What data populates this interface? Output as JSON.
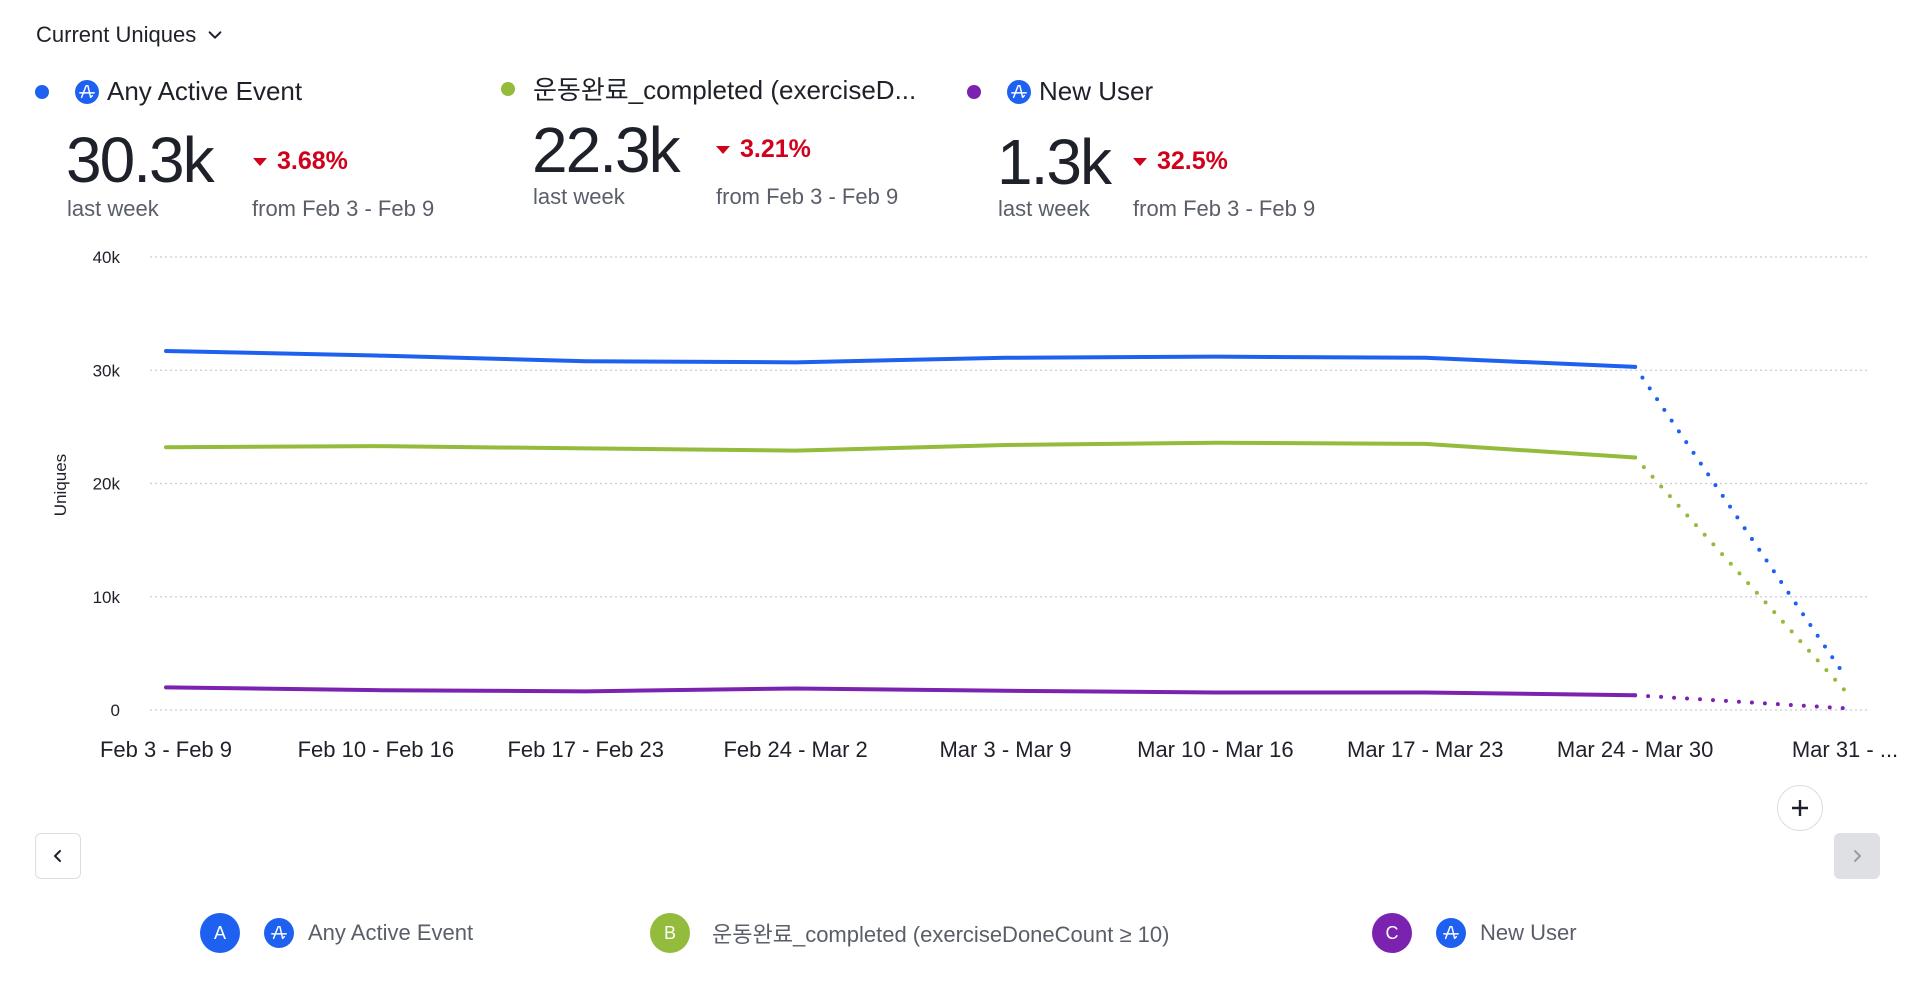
{
  "header": {
    "metric_selector": "Current Uniques",
    "metric_selector_icon": "chevron-down-icon"
  },
  "summary": [
    {
      "letter": "A",
      "name": "Any Active Event",
      "icon": "amplitude-event-icon",
      "color": "#1e61f0",
      "value": "30.3k",
      "value_label": "last week",
      "change": "3.68%",
      "change_direction": "down",
      "change_label": "from Feb 3 - Feb 9"
    },
    {
      "letter": "B",
      "name": "운동완료_completed (exerciseD...",
      "icon": null,
      "color": "#93bb3c",
      "value": "22.3k",
      "value_label": "last week",
      "change": "3.21%",
      "change_direction": "down",
      "change_label": "from Feb 3 - Feb 9"
    },
    {
      "letter": "C",
      "name": "New User",
      "icon": "amplitude-event-icon",
      "color": "#7b22b0",
      "value": "1.3k",
      "value_label": "last week",
      "change": "32.5%",
      "change_direction": "down",
      "change_label": "from Feb 3 - Feb 9"
    }
  ],
  "legend": [
    {
      "letter": "A",
      "label": "Any Active Event",
      "has_icon": true,
      "color": "#1e61f0"
    },
    {
      "letter": "B",
      "label": "운동완료_completed (exerciseDoneCount ≥ 10)",
      "has_icon": false,
      "color": "#93bb3c"
    },
    {
      "letter": "C",
      "label": "New User",
      "has_icon": true,
      "color": "#7b22b0"
    }
  ],
  "controls": {
    "prev_icon": "chevron-left-icon",
    "next_icon": "chevron-right-icon",
    "add_icon": "plus-icon"
  },
  "chart_data": {
    "type": "line",
    "title": "",
    "xlabel": "",
    "ylabel": "Uniques",
    "ylim": [
      0,
      40000
    ],
    "yticks": [
      0,
      10000,
      20000,
      30000,
      40000
    ],
    "ytick_labels": [
      "0",
      "10k",
      "20k",
      "30k",
      "40k"
    ],
    "grid": true,
    "categories": [
      "Feb 3 - Feb 9",
      "Feb 10 - Feb 16",
      "Feb 17 - Feb 23",
      "Feb 24 - Mar 2",
      "Mar 3 - Mar 9",
      "Mar 10 - Mar 16",
      "Mar 17 - Mar 23",
      "Mar 24 - Mar 30",
      "Mar 31 - ..."
    ],
    "incomplete_from_index": 7,
    "series": [
      {
        "name": "Any Active Event",
        "color": "#1e61f0",
        "values": [
          31700,
          31300,
          30800,
          30700,
          31100,
          31200,
          31100,
          30300,
          3000
        ]
      },
      {
        "name": "운동완료_completed (exerciseDoneCount ≥ 10)",
        "color": "#93bb3c",
        "values": [
          23200,
          23300,
          23100,
          22900,
          23400,
          23600,
          23500,
          22300,
          1700
        ]
      },
      {
        "name": "New User",
        "color": "#7b22b0",
        "values": [
          2000,
          1750,
          1650,
          1900,
          1700,
          1550,
          1550,
          1300,
          150
        ]
      }
    ]
  }
}
